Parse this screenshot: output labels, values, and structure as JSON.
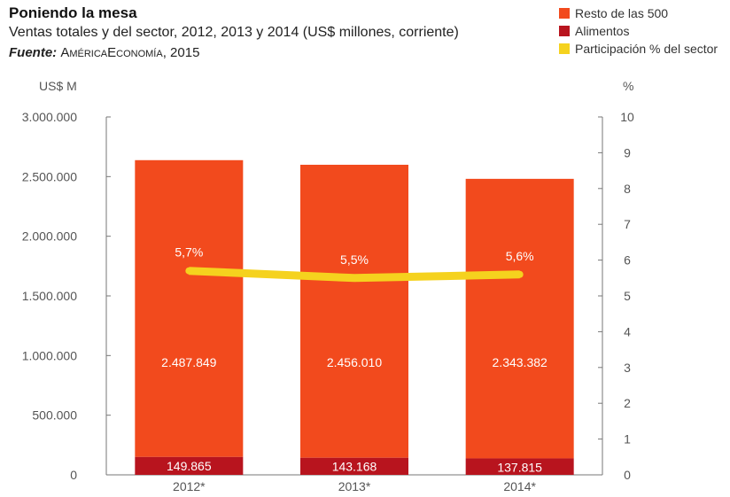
{
  "header": {
    "title": "Poniendo la mesa",
    "subtitle": "Ventas totales y del sector, 2012, 2013 y 2014 (US$ millones, corriente)",
    "source_label": "Fuente:",
    "source_org": "AméricaEconomía",
    "source_year": ", 2015"
  },
  "legend": [
    {
      "label": "Resto de las 500",
      "color": "#f24a1d"
    },
    {
      "label": "Alimentos",
      "color": "#b8141e"
    },
    {
      "label": "Participación % del sector",
      "color": "#f5d21e"
    }
  ],
  "chart_data": {
    "type": "bar",
    "stacked": true,
    "categories": [
      "2012*",
      "2013*",
      "2014*"
    ],
    "series": [
      {
        "name": "Alimentos",
        "values": [
          149865,
          143168,
          137815
        ],
        "value_labels": [
          "149.865",
          "143.168",
          "137.815"
        ],
        "color": "#b8141e"
      },
      {
        "name": "Resto de las 500",
        "values": [
          2487849,
          2456010,
          2343382
        ],
        "value_labels": [
          "2.487.849",
          "2.456.010",
          "2.343.382"
        ],
        "color": "#f24a1d"
      }
    ],
    "line_series": {
      "name": "Participación % del sector",
      "values": [
        5.7,
        5.5,
        5.6
      ],
      "value_labels": [
        "5,7%",
        "5,5%",
        "5,6%"
      ],
      "axis": "right",
      "color": "#f5d21e"
    },
    "y_left": {
      "label": "US$ M",
      "ylim": [
        0,
        3000000
      ],
      "ticks": [
        0,
        500000,
        1000000,
        1500000,
        2000000,
        2500000,
        3000000
      ],
      "tick_labels": [
        "0",
        "500.000",
        "1.000.000",
        "1.500.000",
        "2.000.000",
        "2.500.000",
        "3.000.000"
      ]
    },
    "y_right": {
      "label": "%",
      "ylim": [
        0,
        10
      ],
      "ticks": [
        0,
        1,
        2,
        3,
        4,
        5,
        6,
        7,
        8,
        9,
        10
      ],
      "tick_labels": [
        "0",
        "1",
        "2",
        "3",
        "4",
        "5",
        "6",
        "7",
        "8",
        "9",
        "10"
      ]
    },
    "grid": false,
    "legend_position": "top-right"
  }
}
